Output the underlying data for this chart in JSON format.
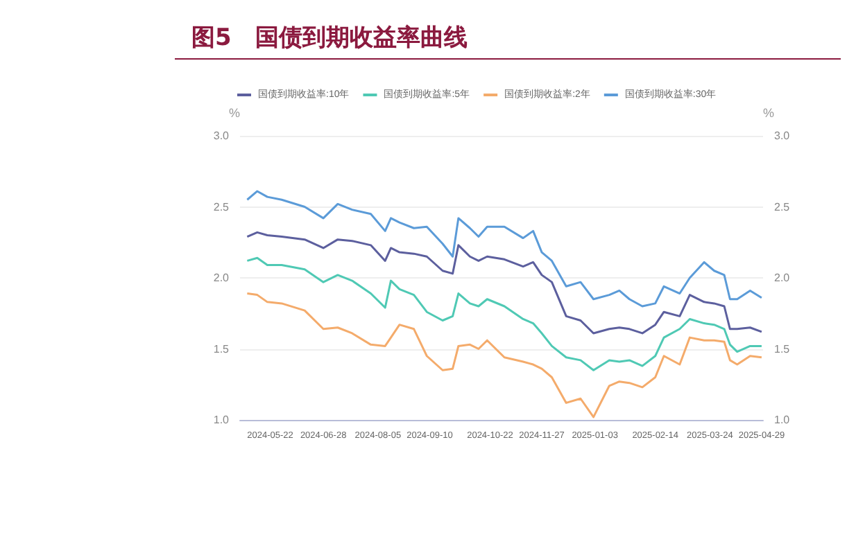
{
  "chart_data": {
    "type": "line",
    "title": "图5　国债到期收益率曲线",
    "x": [
      "2024-05-06",
      "2024-05-13",
      "2024-05-20",
      "2024-05-30",
      "2024-06-15",
      "2024-06-28",
      "2024-07-08",
      "2024-07-18",
      "2024-07-31",
      "2024-08-10",
      "2024-08-14",
      "2024-08-20",
      "2024-08-30",
      "2024-09-08",
      "2024-09-19",
      "2024-09-26",
      "2024-09-30",
      "2024-10-08",
      "2024-10-14",
      "2024-10-20",
      "2024-11-01",
      "2024-11-14",
      "2024-11-21",
      "2024-11-27",
      "2024-12-04",
      "2024-12-14",
      "2024-12-24",
      "2025-01-02",
      "2025-01-13",
      "2025-01-20",
      "2025-01-27",
      "2025-02-05",
      "2025-02-14",
      "2025-02-20",
      "2025-03-03",
      "2025-03-10",
      "2025-03-20",
      "2025-03-27",
      "2025-04-03",
      "2025-04-07",
      "2025-04-12",
      "2025-04-21",
      "2025-04-29"
    ],
    "series": [
      {
        "name": "国债到期收益率:10年",
        "color": "#5c5f9e",
        "values": [
          2.29,
          2.32,
          2.3,
          2.29,
          2.27,
          2.21,
          2.27,
          2.26,
          2.23,
          2.12,
          2.21,
          2.18,
          2.17,
          2.15,
          2.05,
          2.03,
          2.23,
          2.15,
          2.12,
          2.15,
          2.13,
          2.08,
          2.11,
          2.02,
          1.97,
          1.73,
          1.7,
          1.61,
          1.64,
          1.65,
          1.64,
          1.61,
          1.67,
          1.76,
          1.73,
          1.88,
          1.83,
          1.82,
          1.8,
          1.64,
          1.64,
          1.65,
          1.62
        ]
      },
      {
        "name": "国债到期收益率:5年",
        "color": "#4fc9b4",
        "values": [
          2.12,
          2.14,
          2.09,
          2.09,
          2.06,
          1.97,
          2.02,
          1.98,
          1.89,
          1.79,
          1.98,
          1.92,
          1.88,
          1.76,
          1.7,
          1.73,
          1.89,
          1.82,
          1.8,
          1.85,
          1.8,
          1.71,
          1.68,
          1.61,
          1.52,
          1.44,
          1.42,
          1.35,
          1.42,
          1.41,
          1.42,
          1.38,
          1.45,
          1.58,
          1.64,
          1.71,
          1.68,
          1.67,
          1.64,
          1.53,
          1.48,
          1.52,
          1.52
        ]
      },
      {
        "name": "国债到期收益率:2年",
        "color": "#f4ab6b",
        "values": [
          1.89,
          1.88,
          1.83,
          1.82,
          1.77,
          1.64,
          1.65,
          1.61,
          1.53,
          1.52,
          1.58,
          1.67,
          1.64,
          1.45,
          1.35,
          1.36,
          1.52,
          1.53,
          1.5,
          1.56,
          1.44,
          1.41,
          1.39,
          1.36,
          1.3,
          1.12,
          1.15,
          1.02,
          1.24,
          1.27,
          1.26,
          1.23,
          1.3,
          1.45,
          1.39,
          1.58,
          1.56,
          1.56,
          1.55,
          1.42,
          1.39,
          1.45,
          1.44
        ]
      },
      {
        "name": "国债到期收益率:30年",
        "color": "#5b9bd8",
        "values": [
          2.55,
          2.61,
          2.57,
          2.55,
          2.5,
          2.42,
          2.52,
          2.48,
          2.45,
          2.33,
          2.42,
          2.39,
          2.35,
          2.36,
          2.24,
          2.15,
          2.42,
          2.35,
          2.29,
          2.36,
          2.36,
          2.28,
          2.33,
          2.18,
          2.12,
          1.94,
          1.97,
          1.85,
          1.88,
          1.91,
          1.85,
          1.8,
          1.82,
          1.94,
          1.89,
          2.0,
          2.11,
          2.05,
          2.02,
          1.85,
          1.85,
          1.91,
          1.86
        ]
      }
    ],
    "xlim": [
      "2024-05-01",
      "2025-04-30"
    ],
    "xticks": [
      "2024-05-22",
      "2024-06-28",
      "2024-08-05",
      "2024-09-10",
      "2024-10-22",
      "2024-11-27",
      "2025-01-03",
      "2025-02-14",
      "2025-03-24",
      "2025-04-29"
    ],
    "ylabel": "%",
    "y2label": "%",
    "ylim": [
      1,
      3
    ],
    "yticks": [
      {
        "value": 1,
        "label": "1.0"
      },
      {
        "value": 1.5,
        "label": "1.5"
      },
      {
        "value": 2,
        "label": "2.0"
      },
      {
        "value": 2.5,
        "label": "2.5"
      },
      {
        "value": 3,
        "label": "3.0"
      }
    ],
    "y2lim": [
      1,
      3
    ],
    "y2ticks": [
      {
        "value": 1,
        "label": "1.0"
      },
      {
        "value": 1.5,
        "label": "1.5"
      },
      {
        "value": 2,
        "label": "2.0"
      },
      {
        "value": 2.5,
        "label": "2.5"
      },
      {
        "value": 3,
        "label": "3.0"
      }
    ],
    "grid": "y",
    "legend": "top left",
    "marker": "none",
    "line_style": "solid"
  }
}
